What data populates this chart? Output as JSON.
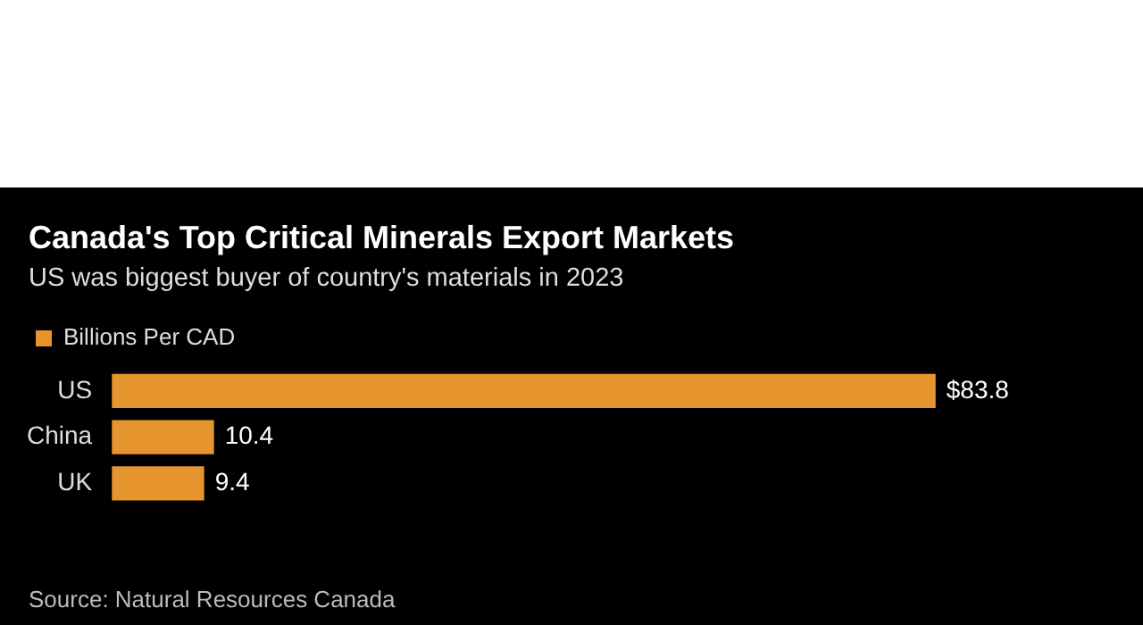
{
  "chart_data": {
    "type": "bar",
    "orientation": "horizontal",
    "title": "Canada's Top Critical Minerals Export Markets",
    "subtitle": "US was biggest buyer of country's materials in 2023",
    "categories": [
      "US",
      "China",
      "UK"
    ],
    "series": [
      {
        "name": "Billions Per CAD",
        "color": "#e6952e",
        "values": [
          83.8,
          10.4,
          9.4
        ],
        "value_labels": [
          "$83.8",
          "10.4",
          "9.4"
        ]
      }
    ],
    "legend": "top left",
    "tick_labels": "y",
    "annotations": [
      "Source: Natural Resources Canada"
    ]
  }
}
